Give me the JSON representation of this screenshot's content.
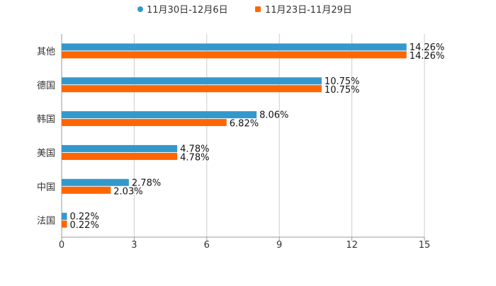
{
  "chart_data": {
    "type": "bar",
    "orientation": "horizontal",
    "categories": [
      "其他",
      "德国",
      "韩国",
      "美国",
      "中国",
      "法国"
    ],
    "series": [
      {
        "name": "11月30日-12月6日",
        "color": "#3399cc",
        "values": [
          14.26,
          10.75,
          8.06,
          4.78,
          2.78,
          0.22
        ],
        "labels": [
          "14.26%",
          "10.75%",
          "8.06%",
          "4.78%",
          "2.78%",
          "0.22%"
        ]
      },
      {
        "name": "11月23日-11月29日",
        "color": "#ff6600",
        "values": [
          14.26,
          10.75,
          6.82,
          4.78,
          2.03,
          0.22
        ],
        "labels": [
          "14.26%",
          "10.75%",
          "6.82%",
          "4.78%",
          "2.03%",
          "0.22%"
        ]
      }
    ],
    "xlim": [
      0,
      15
    ],
    "xticks": [
      "0",
      "3",
      "6",
      "9",
      "12",
      "15"
    ],
    "grid": true,
    "legend_position": "top-center",
    "title": "",
    "xlabel": "",
    "ylabel": ""
  }
}
